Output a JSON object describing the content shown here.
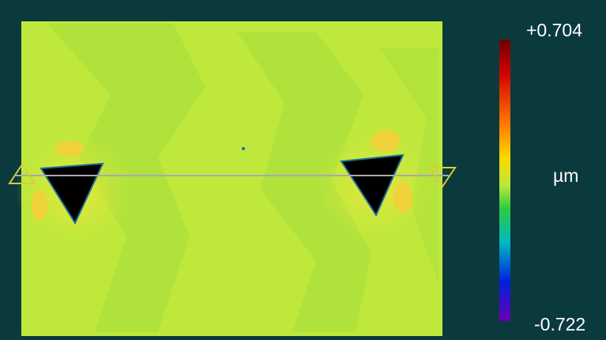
{
  "colorbar": {
    "max": "+0.704",
    "unit": "µm",
    "min": "-0.722"
  }
}
